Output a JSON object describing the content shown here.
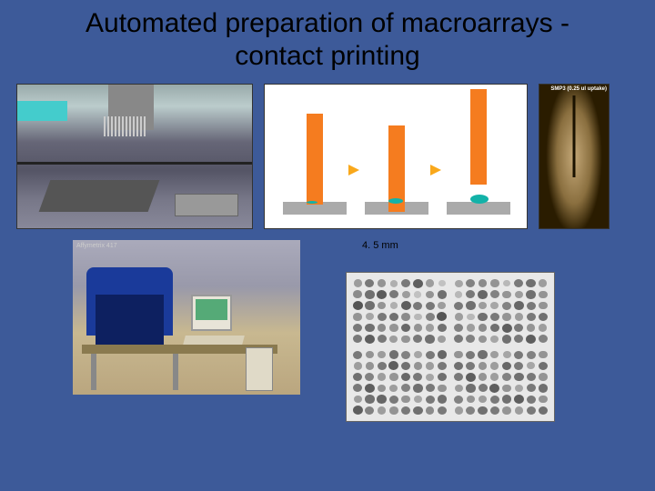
{
  "title_line1": "Automated preparation of macroarrays -",
  "title_line2": "contact printing",
  "pin_label": "SMP3 (0.25 ul uptake)",
  "scale_label": "4. 5 mm",
  "photo2_label": "Affymetrix 417",
  "colors": {
    "background": "#3d5a99",
    "pin_orange": "#f57c1f",
    "arrow_orange": "#f9a81b",
    "drop_teal": "#13b2a8",
    "surface_gray": "#aaaaaa",
    "scale_arrow": "#c84"
  },
  "array": {
    "blocks": 4,
    "cols": 8,
    "rows": 6,
    "spots": [
      [
        0.35,
        0.55,
        0.4,
        0.25,
        0.55,
        0.7,
        0.35,
        0.15,
        0.45,
        0.6,
        0.72,
        0.55,
        0.35,
        0.15,
        0.4,
        0.6,
        0.75,
        0.6,
        0.4,
        0.25,
        0.7,
        0.55,
        0.55,
        0.35,
        0.4,
        0.3,
        0.55,
        0.6,
        0.45,
        0.2,
        0.5,
        0.75,
        0.55,
        0.6,
        0.45,
        0.4,
        0.65,
        0.4,
        0.35,
        0.6,
        0.55,
        0.7,
        0.55,
        0.35,
        0.4,
        0.55,
        0.6,
        0.35
      ],
      [
        0.3,
        0.5,
        0.45,
        0.4,
        0.2,
        0.55,
        0.6,
        0.35,
        0.2,
        0.55,
        0.65,
        0.5,
        0.4,
        0.35,
        0.6,
        0.4,
        0.55,
        0.6,
        0.35,
        0.3,
        0.5,
        0.65,
        0.55,
        0.4,
        0.35,
        0.2,
        0.6,
        0.55,
        0.4,
        0.35,
        0.55,
        0.6,
        0.5,
        0.35,
        0.45,
        0.6,
        0.7,
        0.55,
        0.4,
        0.35,
        0.55,
        0.5,
        0.4,
        0.3,
        0.6,
        0.55,
        0.7,
        0.5
      ],
      [
        0.55,
        0.4,
        0.35,
        0.6,
        0.5,
        0.3,
        0.55,
        0.65,
        0.35,
        0.4,
        0.55,
        0.7,
        0.6,
        0.4,
        0.35,
        0.55,
        0.6,
        0.5,
        0.35,
        0.4,
        0.65,
        0.55,
        0.3,
        0.6,
        0.55,
        0.7,
        0.4,
        0.35,
        0.5,
        0.6,
        0.55,
        0.4,
        0.35,
        0.6,
        0.65,
        0.55,
        0.4,
        0.3,
        0.55,
        0.6,
        0.7,
        0.5,
        0.35,
        0.4,
        0.55,
        0.6,
        0.45,
        0.55
      ],
      [
        0.4,
        0.55,
        0.6,
        0.35,
        0.3,
        0.55,
        0.5,
        0.4,
        0.6,
        0.55,
        0.4,
        0.35,
        0.65,
        0.55,
        0.3,
        0.6,
        0.55,
        0.7,
        0.4,
        0.35,
        0.5,
        0.6,
        0.55,
        0.4,
        0.35,
        0.6,
        0.55,
        0.7,
        0.4,
        0.3,
        0.55,
        0.6,
        0.5,
        0.4,
        0.35,
        0.55,
        0.6,
        0.7,
        0.55,
        0.4,
        0.35,
        0.5,
        0.6,
        0.55,
        0.4,
        0.35,
        0.55,
        0.6
      ]
    ]
  }
}
